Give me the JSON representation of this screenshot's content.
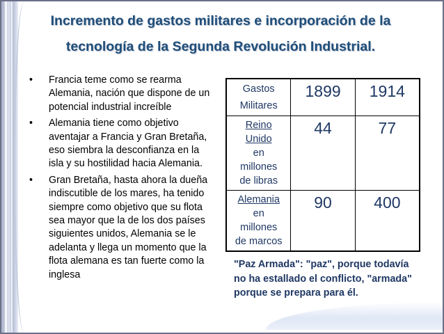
{
  "slide": {
    "title_line1": "Incremento de gastos militares e incorporación de la",
    "title_line2": "tecnología de la Segunda Revolución Industrial.",
    "bullet_symbol": "•",
    "bullets": [
      "Francia teme como se rearma Alemania, nación que dispone de un potencial industrial increíble",
      "Alemania tiene como objetivo aventajar a Francia y Gran Bretaña, eso siembra la desconfianza en la isla y su hostilidad hacia Alemania.",
      "Gran Bretaña, hasta ahora la dueña indiscutible de los mares, ha tenido siempre como objetivo que su flota sea mayor que la de los dos países siguientes unidos, Alemania se le adelanta y llega un momento que la flota alemana es tan fuerte como la inglesa"
    ],
    "table": {
      "header": {
        "label_line1": "Gastos",
        "label_line2": "Militares",
        "years": [
          "1899",
          "1914"
        ]
      },
      "rows": [
        {
          "country_line1": "Reino",
          "country_line2": "Unido",
          "unit_line1": "en",
          "unit_line2": "millones",
          "unit_line3": "de libras",
          "values": [
            "44",
            "77"
          ]
        },
        {
          "country_line1": "Alemania",
          "unit_line1": "en",
          "unit_line2": "millones",
          "unit_line3": "de marcos",
          "values": [
            "90",
            "400"
          ]
        }
      ]
    },
    "note": "\"Paz Armada\": \"paz\", porque todavía no ha estallado el conflicto, \"armada\" porque se prepara para él.",
    "colors": {
      "title": "#1f4e79",
      "table_text": "#1f3864",
      "note": "#1f3864"
    }
  }
}
